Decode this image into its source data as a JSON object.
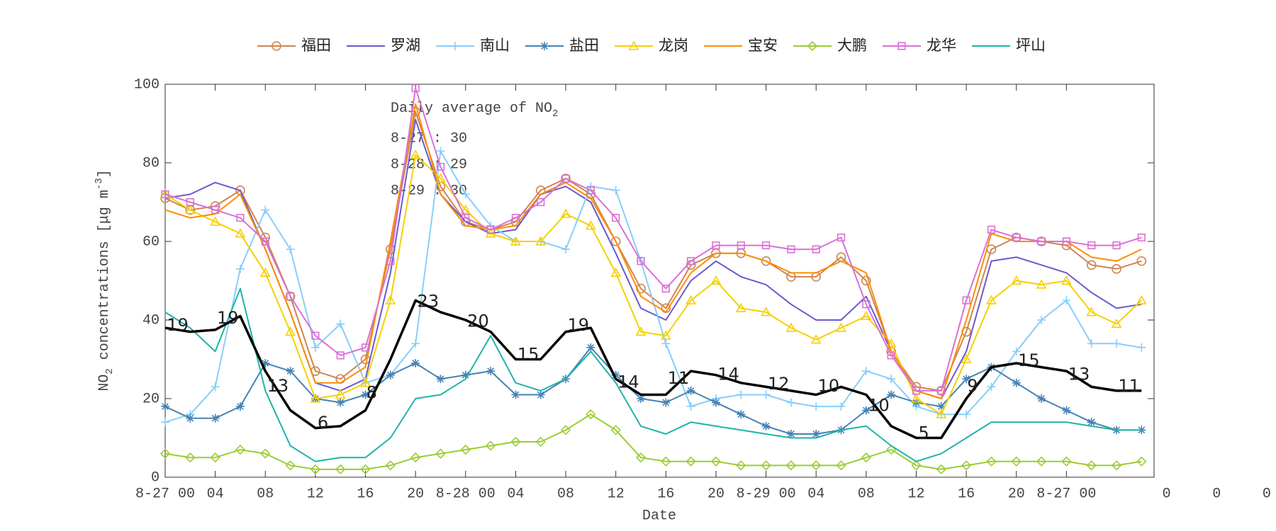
{
  "chart_data": {
    "type": "line",
    "xlabel": "Date",
    "ylabel_parts": [
      "NO",
      "2",
      " concentrations [μg m",
      "-3",
      "]"
    ],
    "xlim": [
      0,
      79
    ],
    "ylim": [
      0,
      100
    ],
    "yticks": [
      0,
      20,
      40,
      60,
      80,
      100
    ],
    "xticks": [
      {
        "value": 0,
        "label": "8-27 00"
      },
      {
        "value": 4,
        "label": "04"
      },
      {
        "value": 8,
        "label": "08"
      },
      12,
      16,
      20,
      {
        "value": 24,
        "label": "8-28 00"
      },
      {
        "value": 28,
        "label": "04"
      },
      {
        "value": 32,
        "label": "08"
      },
      {
        "value": 36,
        "label": "12"
      },
      {
        "value": 40,
        "label": "16"
      },
      {
        "value": 44,
        "label": "20"
      },
      {
        "value": 48,
        "label": "8-29 00"
      },
      {
        "value": 52,
        "label": "04"
      },
      {
        "value": 56,
        "label": "08"
      },
      {
        "value": 60,
        "label": "12"
      },
      {
        "value": 64,
        "label": "16"
      },
      {
        "value": 68,
        "label": "20"
      },
      {
        "value": 72,
        "label": "8-27 00"
      },
      {
        "value": 80,
        "label": "0"
      },
      {
        "value": 84,
        "label": "0"
      },
      {
        "value": 88,
        "label": "0"
      }
    ],
    "grid": false,
    "legend": "top",
    "x": [
      0,
      2,
      4,
      6,
      8,
      10,
      12,
      14,
      16,
      18,
      20,
      22,
      24,
      26,
      28,
      30,
      32,
      34,
      36,
      38,
      40,
      42,
      44,
      46,
      48,
      50,
      52,
      54,
      56,
      58,
      60,
      62,
      64,
      66,
      68,
      70,
      72,
      74,
      76,
      78
    ],
    "series": [
      {
        "name": "福田",
        "color": "#cd8650",
        "marker": "circle",
        "values": [
          71,
          68,
          69,
          73,
          61,
          46,
          27,
          25,
          30,
          58,
          93,
          74,
          65,
          63,
          65,
          73,
          76,
          72,
          60,
          48,
          43,
          54,
          57,
          57,
          55,
          51,
          51,
          56,
          50,
          32,
          23,
          22,
          37,
          58,
          61,
          60,
          59,
          54,
          53,
          55
        ]
      },
      {
        "name": "罗湖",
        "color": "#6a5acd",
        "marker": "none",
        "values": [
          71,
          72,
          75,
          73,
          58,
          42,
          24,
          22,
          25,
          52,
          91,
          72,
          65,
          62,
          63,
          72,
          74,
          70,
          57,
          43,
          40,
          50,
          55,
          51,
          49,
          44,
          40,
          40,
          46,
          32,
          22,
          20,
          32,
          55,
          56,
          54,
          52,
          47,
          43,
          44
        ]
      },
      {
        "name": "南山",
        "color": "#87cefa",
        "marker": "plus",
        "values": [
          14,
          16,
          23,
          53,
          68,
          58,
          33,
          39,
          24,
          26,
          34,
          83,
          72,
          64,
          60,
          60,
          58,
          74,
          73,
          55,
          34,
          18,
          20,
          21,
          21,
          19,
          18,
          18,
          27,
          25,
          18,
          16,
          16,
          23,
          32,
          40,
          45,
          34,
          34,
          33
        ]
      },
      {
        "name": "盐田",
        "color": "#4682b4",
        "marker": "asterisk",
        "values": [
          18,
          15,
          15,
          18,
          29,
          27,
          20,
          19,
          21,
          26,
          29,
          25,
          26,
          27,
          21,
          21,
          25,
          33,
          26,
          20,
          19,
          22,
          19,
          16,
          13,
          11,
          11,
          12,
          17,
          21,
          19,
          18,
          25,
          28,
          24,
          20,
          17,
          14,
          12,
          12
        ]
      },
      {
        "name": "龙岗",
        "color": "#f5d000",
        "marker": "triangle",
        "values": [
          72,
          68,
          65,
          62,
          52,
          37,
          20,
          21,
          24,
          45,
          82,
          76,
          68,
          62,
          60,
          60,
          67,
          64,
          52,
          37,
          36,
          45,
          50,
          43,
          42,
          38,
          35,
          38,
          41,
          34,
          20,
          16,
          30,
          45,
          50,
          49,
          50,
          42,
          39,
          45
        ]
      },
      {
        "name": "宝安",
        "color": "#ff8c00",
        "marker": "none",
        "values": [
          68,
          66,
          67,
          72,
          58,
          42,
          24,
          24,
          28,
          60,
          95,
          72,
          64,
          63,
          64,
          72,
          75,
          71,
          60,
          46,
          42,
          52,
          57,
          57,
          55,
          52,
          52,
          55,
          52,
          32,
          22,
          20,
          40,
          62,
          60,
          60,
          60,
          56,
          55,
          58
        ]
      },
      {
        "name": "大鹏",
        "color": "#9acd32",
        "marker": "diamond",
        "values": [
          6,
          5,
          5,
          7,
          6,
          3,
          2,
          2,
          2,
          3,
          5,
          6,
          7,
          8,
          9,
          9,
          12,
          16,
          12,
          5,
          4,
          4,
          4,
          3,
          3,
          3,
          3,
          3,
          5,
          7,
          3,
          2,
          3,
          4,
          4,
          4,
          4,
          3,
          3,
          4
        ]
      },
      {
        "name": "龙华",
        "color": "#da70d6",
        "marker": "square",
        "values": [
          72,
          70,
          68,
          66,
          60,
          46,
          36,
          31,
          33,
          55,
          99,
          79,
          66,
          63,
          66,
          70,
          76,
          73,
          66,
          55,
          48,
          55,
          59,
          59,
          59,
          58,
          58,
          61,
          44,
          31,
          22,
          22,
          45,
          63,
          61,
          60,
          60,
          59,
          59,
          61
        ]
      },
      {
        "name": "坪山",
        "color": "#20b2aa",
        "marker": "none",
        "values": [
          42,
          38,
          32,
          48,
          22,
          8,
          4,
          5,
          5,
          10,
          20,
          21,
          25,
          36,
          24,
          22,
          25,
          32,
          24,
          13,
          11,
          14,
          13,
          12,
          11,
          10,
          10,
          12,
          13,
          8,
          4,
          6,
          10,
          14,
          14,
          14,
          14,
          13,
          12,
          12
        ]
      }
    ],
    "mean_line": {
      "color": "#000000",
      "values": [
        38,
        37,
        37.5,
        41,
        27,
        17,
        12.5,
        13,
        17,
        30,
        45,
        42,
        40,
        37,
        30,
        30,
        37,
        38,
        25,
        21,
        21,
        27,
        26,
        24,
        23,
        22,
        21,
        23,
        21,
        13,
        10,
        10,
        20,
        28,
        29,
        28,
        27,
        23,
        22,
        22
      ]
    },
    "mean_labels": [
      {
        "label": "19",
        "x": 1
      },
      {
        "label": "19",
        "x": 5
      },
      {
        "label": "13",
        "x": 9
      },
      {
        "label": "6",
        "x": 12.6
      },
      {
        "label": "8",
        "x": 16.5
      },
      {
        "label": "23",
        "x": 21
      },
      {
        "label": "20",
        "x": 25
      },
      {
        "label": "15",
        "x": 29
      },
      {
        "label": "19",
        "x": 33
      },
      {
        "label": "14",
        "x": 37
      },
      {
        "label": "11",
        "x": 41
      },
      {
        "label": "14",
        "x": 45
      },
      {
        "label": "12",
        "x": 49
      },
      {
        "label": "10",
        "x": 53
      },
      {
        "label": "10",
        "x": 57
      },
      {
        "label": "5",
        "x": 60.6
      },
      {
        "label": "9",
        "x": 64.5
      },
      {
        "label": "15",
        "x": 69
      },
      {
        "label": "13",
        "x": 73
      },
      {
        "label": "11",
        "x": 77
      }
    ],
    "info_box": {
      "heading": "Daily average of NO",
      "heading_sub": "2",
      "lines": [
        "8-27 : 30",
        "8-28 : 29",
        "8-29 : 30"
      ]
    }
  }
}
